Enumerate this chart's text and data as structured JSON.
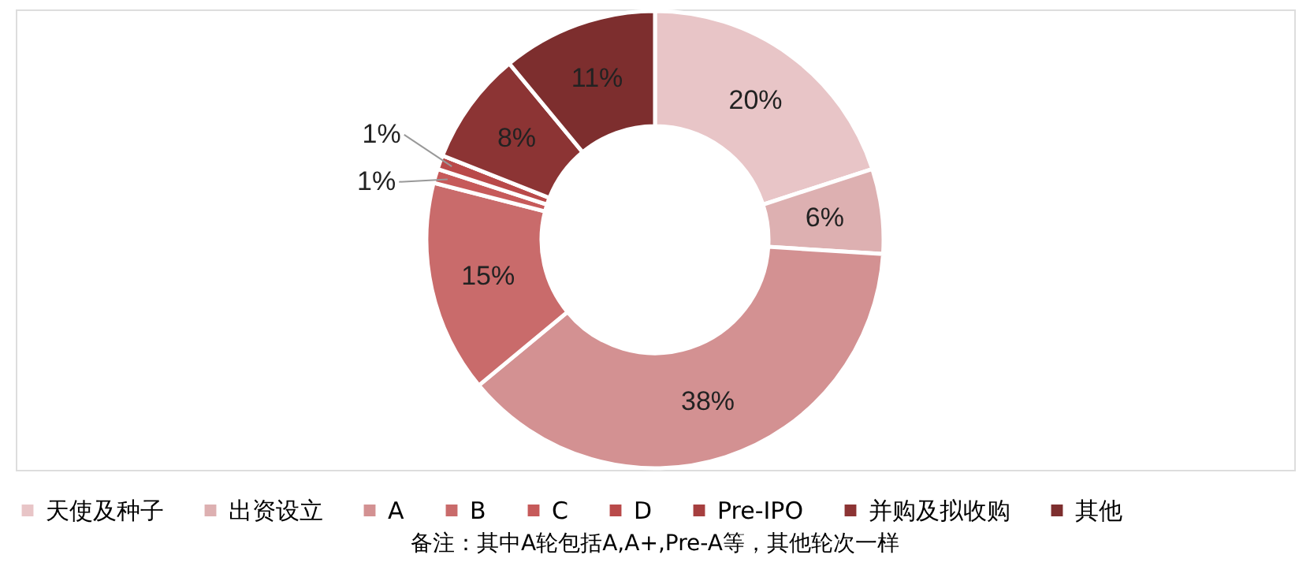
{
  "chart_data": {
    "type": "donut",
    "categories": [
      "天使及种子",
      "出资设立",
      "A",
      "B",
      "C",
      "D",
      "Pre-IPO",
      "并购及拟收购",
      "其他"
    ],
    "values": [
      20,
      6,
      38,
      15,
      1,
      1,
      0,
      8,
      11
    ],
    "colors": [
      "#e8c5c7",
      "#ddb0b1",
      "#d39192",
      "#c96b6b",
      "#c65a5a",
      "#b94a4a",
      "#a63f3f",
      "#8c3434",
      "#7d2e2e"
    ],
    "value_labels": [
      "20%",
      "6%",
      "38%",
      "15%",
      "1%",
      "1%",
      null,
      "8%",
      "11%"
    ],
    "legend": "bottom",
    "annotations": [
      "备注：其中A轮包括A,A+,Pre-A等，其他轮次一样"
    ]
  }
}
